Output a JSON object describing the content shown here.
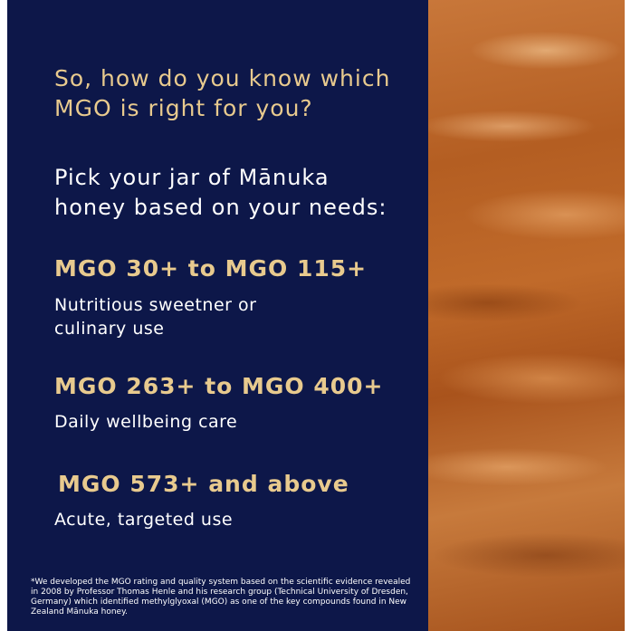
{
  "heading": {
    "line1": "So, how do you know which",
    "line2": "MGO is right for you?"
  },
  "intro": {
    "line1": "Pick your jar of Mānuka",
    "line2": "honey based on your needs:"
  },
  "tiers": [
    {
      "title": "MGO 30+ to MGO 115+",
      "desc1": "Nutritious sweetner or",
      "desc2": "culinary use"
    },
    {
      "title": "MGO 263+ to MGO 400+",
      "desc1": "Daily wellbeing care"
    },
    {
      "title": "MGO 573+ and above",
      "desc1": "Acute, targeted use"
    }
  ],
  "footnote": "*We developed the MGO rating and quality system based on the scientific evidence revealed in 2008 by Professor Thomas Henle and his research group (Technical University of Dresden, Germany) which identified methylglyoxal (MGO) as one of the key compounds found in New Zealand Mānuka honey.",
  "colors": {
    "panel": "#0d1749",
    "gold": "#e8ca8e",
    "text": "#ffffff"
  }
}
